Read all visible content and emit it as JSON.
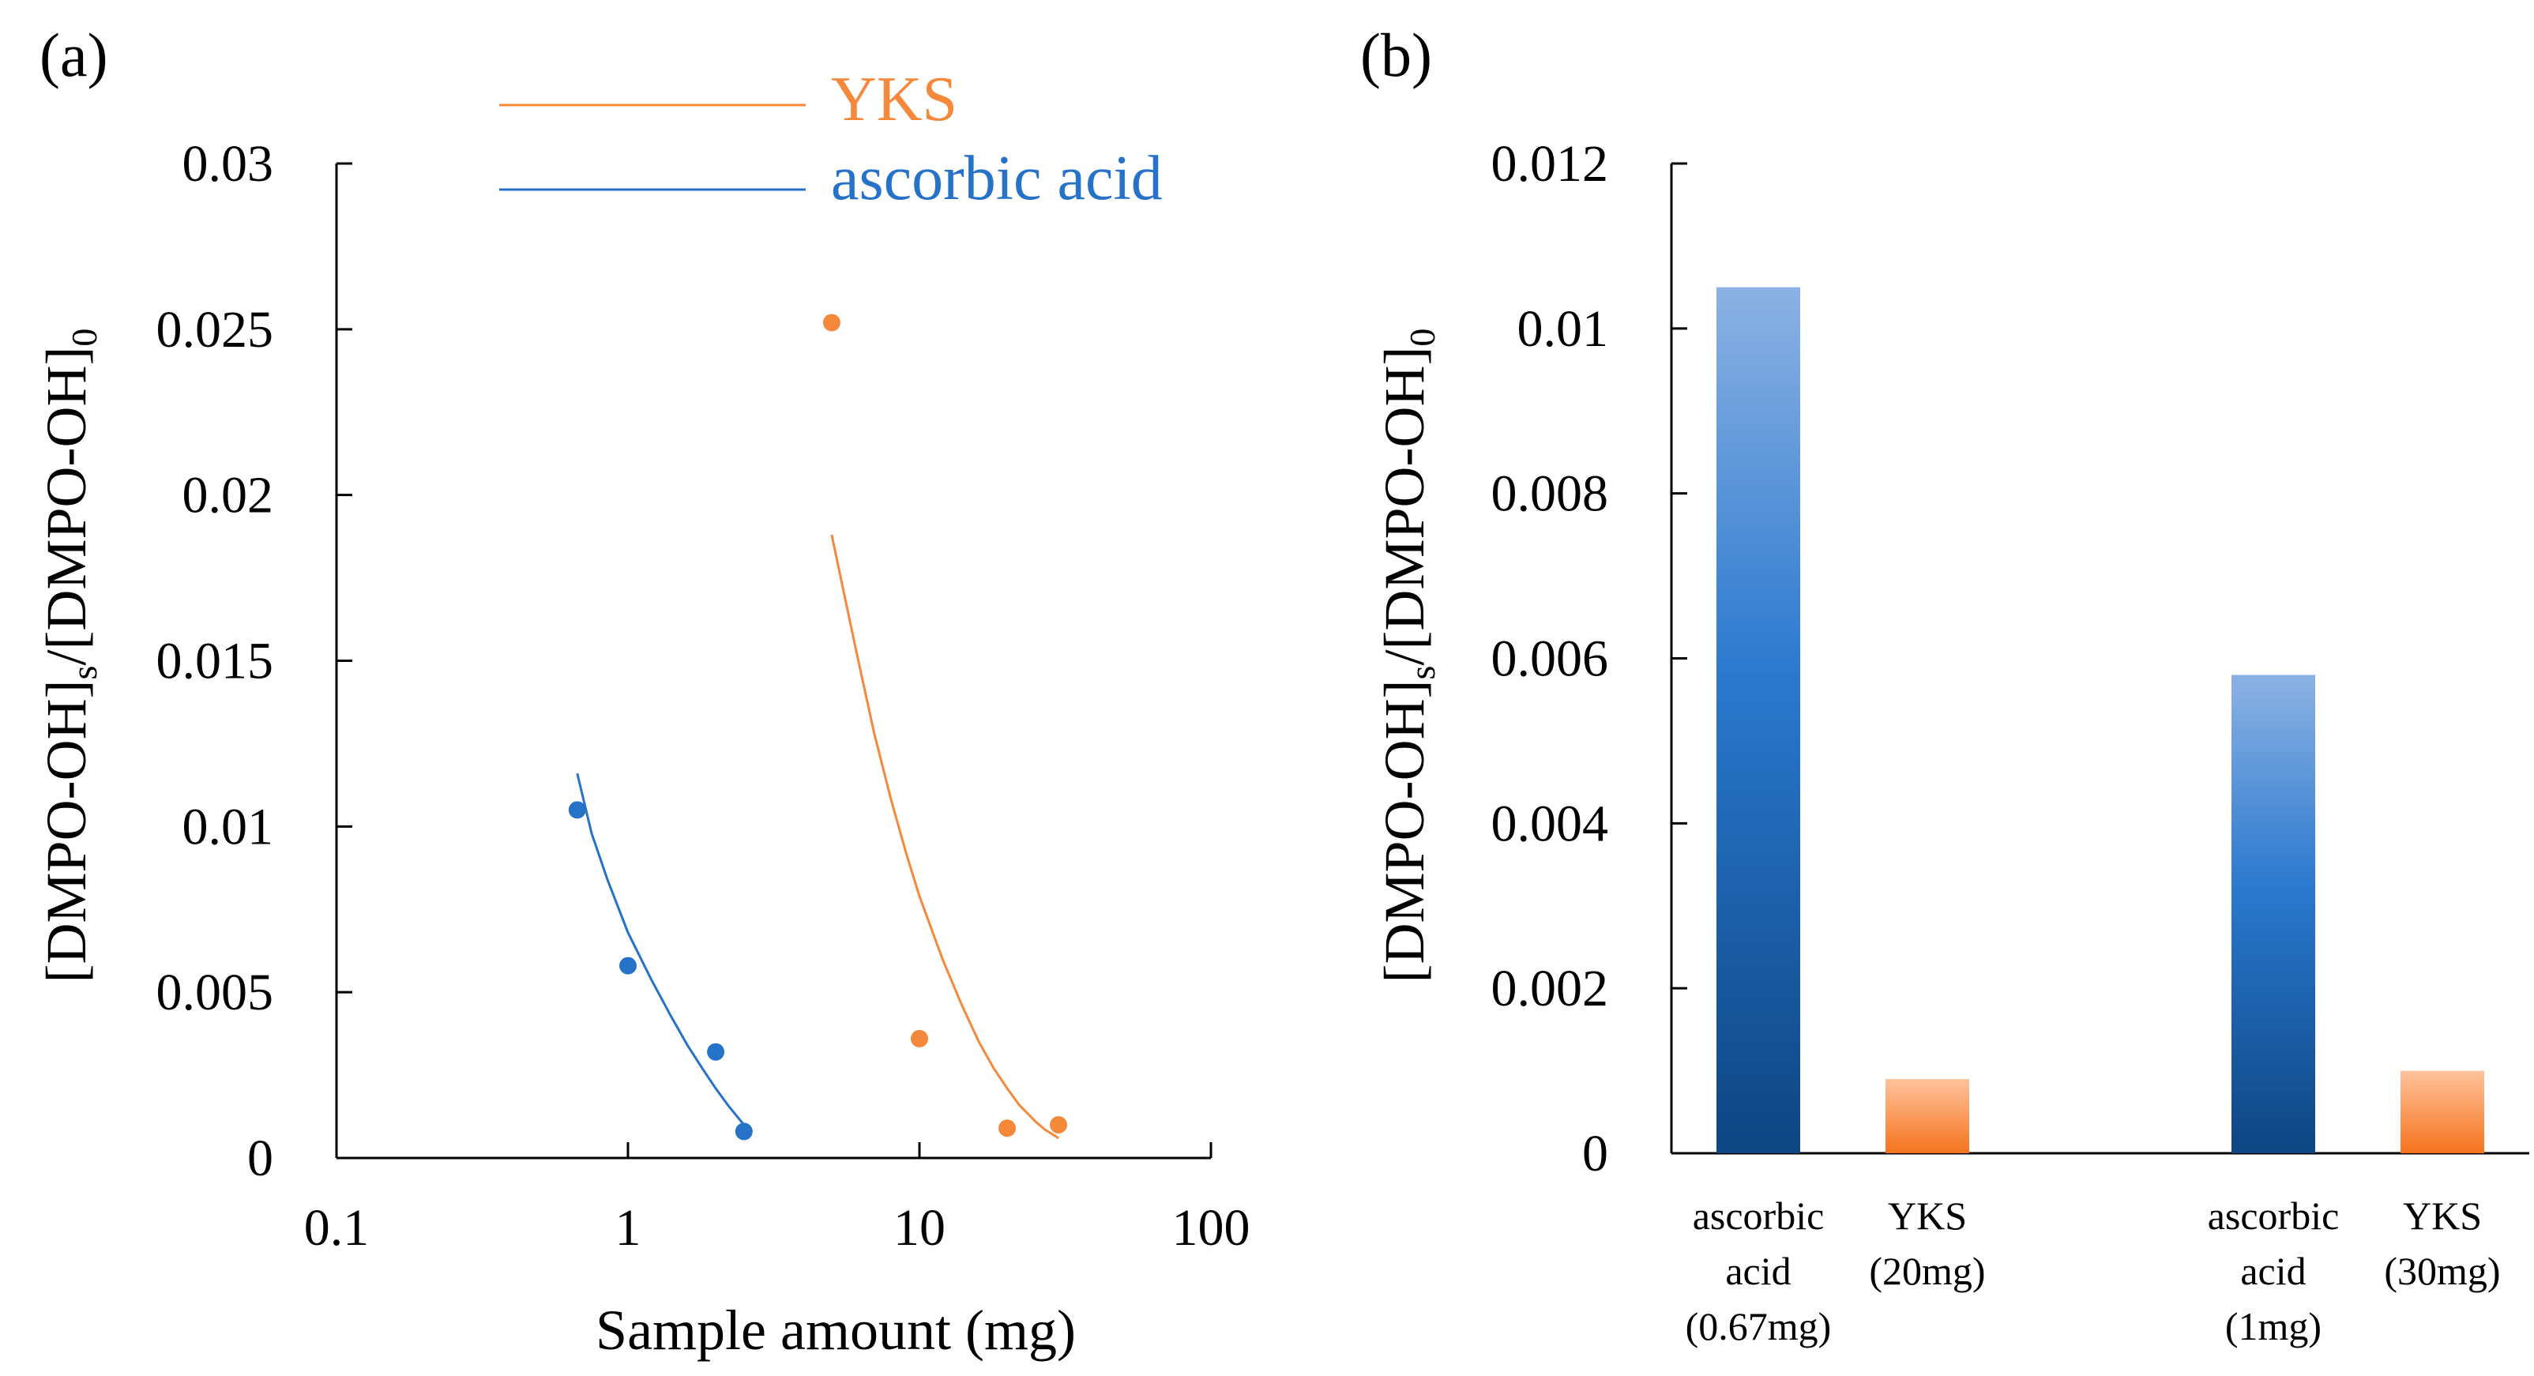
{
  "chart_data": [
    {
      "panel": "(a)",
      "type": "scatter",
      "title": "",
      "xlabel": "Sample amount (mg)",
      "ylabel": "[DMPO-OH]s/[DMPO-OH]0",
      "ylabel_main_a": "[DMPO-OH]",
      "ylabel_sub_a": "s",
      "ylabel_main_b": "/[DMPO-OH]",
      "ylabel_sub_b": "0",
      "xscale": "log",
      "xlim": [
        0.1,
        100
      ],
      "ylim": [
        0,
        0.03
      ],
      "xticks": [
        0.1,
        1,
        10,
        100
      ],
      "xtick_labels": [
        "0.1",
        "1",
        "10",
        "100"
      ],
      "yticks": [
        0,
        0.005,
        0.01,
        0.015,
        0.02,
        0.025,
        0.03
      ],
      "ytick_labels": [
        "0",
        "0.005",
        "0.01",
        "0.015",
        "0.02",
        "0.025",
        "0.03"
      ],
      "legend": "top",
      "series": [
        {
          "name": "YKS",
          "color": "#f5883a",
          "x": [
            5,
            10,
            20,
            30
          ],
          "y": [
            0.0252,
            0.0036,
            0.0009,
            0.001
          ],
          "fit": {
            "x": [
              5,
              6,
              7,
              8,
              9,
              10,
              12,
              14,
              16,
              18,
              20,
              22,
              25,
              27,
              30
            ],
            "y": [
              0.0188,
              0.0155,
              0.0128,
              0.0108,
              0.0092,
              0.0079,
              0.006,
              0.0046,
              0.0035,
              0.0027,
              0.0021,
              0.0016,
              0.0011,
              0.00085,
              0.0006
            ]
          }
        },
        {
          "name": "ascorbic acid",
          "color": "#2672c9",
          "x": [
            0.67,
            1,
            2,
            2.5
          ],
          "y": [
            0.0105,
            0.0058,
            0.0032,
            0.0008
          ],
          "fit": {
            "x": [
              0.67,
              0.75,
              0.85,
              1,
              1.2,
              1.4,
              1.6,
              1.8,
              2,
              2.2,
              2.5
            ],
            "y": [
              0.0116,
              0.0098,
              0.0084,
              0.0068,
              0.0054,
              0.0043,
              0.0034,
              0.0027,
              0.0021,
              0.0016,
              0.001
            ]
          }
        }
      ]
    },
    {
      "panel": "(b)",
      "type": "bar",
      "title": "",
      "xlabel": "",
      "ylabel": "[DMPO-OH]s/[DMPO-OH]0",
      "ylabel_main_a": "[DMPO-OH]",
      "ylabel_sub_a": "s",
      "ylabel_main_b": "/[DMPO-OH]",
      "ylabel_sub_b": "0",
      "ylim": [
        0,
        0.012
      ],
      "yticks": [
        0,
        0.002,
        0.004,
        0.006,
        0.008,
        0.01,
        0.012
      ],
      "ytick_labels": [
        "0",
        "0.002",
        "0.004",
        "0.006",
        "0.008",
        "0.01",
        "0.012"
      ],
      "bars": [
        {
          "category": [
            "ascorbic",
            "acid",
            "(0.67mg)"
          ],
          "value": 0.0105,
          "color": "blue"
        },
        {
          "category": [
            "YKS",
            "(20mg)"
          ],
          "value": 0.0009,
          "color": "orange"
        },
        {
          "category": [
            "ascorbic",
            "acid",
            "(1mg)"
          ],
          "value": 0.0058,
          "color": "blue"
        },
        {
          "category": [
            "YKS",
            "(30mg)"
          ],
          "value": 0.001,
          "color": "orange"
        }
      ]
    }
  ],
  "colors": {
    "yks": "#f5883a",
    "ascorbic": "#2672c9",
    "bar_blue_top": "#8cb2e4",
    "bar_blue_mid": "#2a78ce",
    "bar_blue_bottom": "#0e4583",
    "bar_orange_top": "#ffc39c",
    "bar_orange_bottom": "#f5731e"
  }
}
